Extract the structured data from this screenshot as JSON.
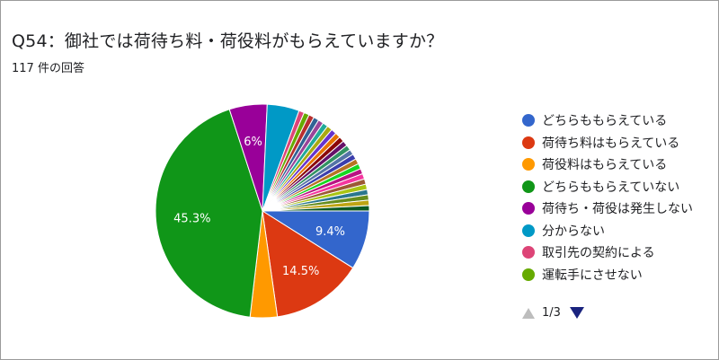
{
  "header": {
    "title": "Q54：御社では荷待ち料・荷役料がもらえていますか？",
    "response_count": "117 件の回答"
  },
  "chart_data": {
    "type": "pie",
    "series": [
      {
        "name": "どちらももらえている",
        "value": 9.4,
        "label": "9.4%",
        "color": "#3366cc"
      },
      {
        "name": "荷待ち料はもらえている",
        "value": 14.5,
        "label": "14.5%",
        "color": "#dc3912"
      },
      {
        "name": "荷役料はもらえている",
        "value": 4.3,
        "label": "",
        "color": "#ff9900"
      },
      {
        "name": "どちらももらえていない",
        "value": 45.3,
        "label": "45.3%",
        "color": "#109618"
      },
      {
        "name": "荷待ち・荷役は発生しない",
        "value": 6.0,
        "label": "6%",
        "color": "#990099"
      },
      {
        "name": "分からない",
        "value": 5.1,
        "label": "",
        "color": "#0099c6"
      },
      {
        "name": "取引先の契約による",
        "value": 0.85,
        "label": "",
        "color": "#dd4477"
      },
      {
        "name": "運転手にさせない",
        "value": 0.85,
        "label": "",
        "color": "#66aa00"
      },
      {
        "name": "",
        "value": 0.85,
        "label": "",
        "color": "#b82e2e"
      },
      {
        "name": "",
        "value": 0.85,
        "label": "",
        "color": "#316395"
      },
      {
        "name": "",
        "value": 0.85,
        "label": "",
        "color": "#994499"
      },
      {
        "name": "",
        "value": 0.85,
        "label": "",
        "color": "#22aa99"
      },
      {
        "name": "",
        "value": 0.85,
        "label": "",
        "color": "#aaaa11"
      },
      {
        "name": "",
        "value": 0.85,
        "label": "",
        "color": "#6633cc"
      },
      {
        "name": "",
        "value": 0.85,
        "label": "",
        "color": "#e67300"
      },
      {
        "name": "",
        "value": 0.85,
        "label": "",
        "color": "#8b0707"
      },
      {
        "name": "",
        "value": 0.85,
        "label": "",
        "color": "#651067"
      },
      {
        "name": "",
        "value": 0.85,
        "label": "",
        "color": "#329262"
      },
      {
        "name": "",
        "value": 0.85,
        "label": "",
        "color": "#5574a6"
      },
      {
        "name": "",
        "value": 0.85,
        "label": "",
        "color": "#3b3eac"
      },
      {
        "name": "",
        "value": 0.85,
        "label": "",
        "color": "#b77322"
      },
      {
        "name": "",
        "value": 0.85,
        "label": "",
        "color": "#16d620"
      },
      {
        "name": "",
        "value": 0.85,
        "label": "",
        "color": "#b91383"
      },
      {
        "name": "",
        "value": 0.85,
        "label": "",
        "color": "#f4359e"
      },
      {
        "name": "",
        "value": 0.85,
        "label": "",
        "color": "#9c5935"
      },
      {
        "name": "",
        "value": 0.85,
        "label": "",
        "color": "#a9c413"
      },
      {
        "name": "",
        "value": 0.85,
        "label": "",
        "color": "#2a778d"
      },
      {
        "name": "",
        "value": 0.85,
        "label": "",
        "color": "#668d1c"
      },
      {
        "name": "",
        "value": 0.85,
        "label": "",
        "color": "#bea413"
      },
      {
        "name": "",
        "value": 0.85,
        "label": "",
        "color": "#0c5922"
      }
    ],
    "legend_position": "right"
  },
  "legend": {
    "items": [
      {
        "label": "どちらももらえている",
        "color": "#3366cc"
      },
      {
        "label": "荷待ち料はもらえている",
        "color": "#dc3912"
      },
      {
        "label": "荷役料はもらえている",
        "color": "#ff9900"
      },
      {
        "label": "どちらももらえていない",
        "color": "#109618"
      },
      {
        "label": "荷待ち・荷役は発生しない",
        "color": "#990099"
      },
      {
        "label": "分からない",
        "color": "#0099c6"
      },
      {
        "label": "取引先の契約による",
        "color": "#dd4477"
      },
      {
        "label": "運転手にさせない",
        "color": "#66aa00"
      }
    ],
    "pager_text": "1/3"
  }
}
